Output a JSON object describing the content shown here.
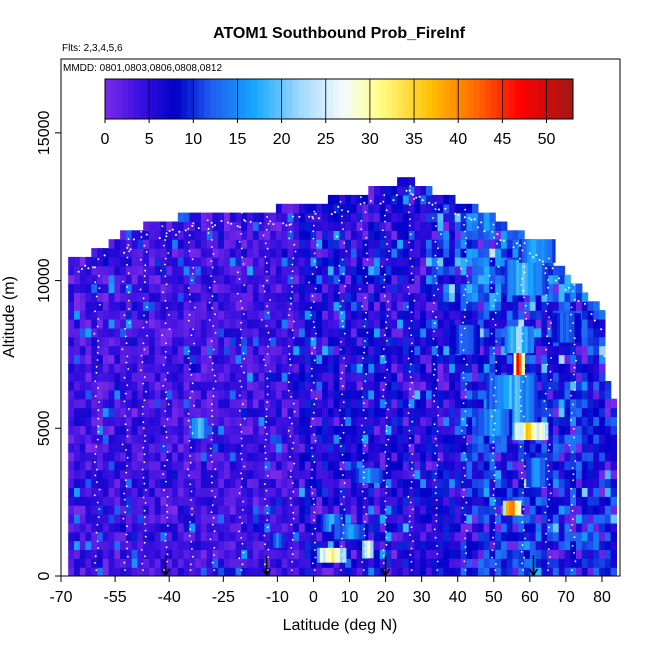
{
  "chart_data": {
    "type": "heatmap",
    "title": "ATOM1 Southbound Prob_FireInf",
    "subtitle_flights": "Flts: 2,3,4,5,6",
    "subtitle_dates": "MMDD: 0801,0803,0806,0808,0812",
    "xlabel": "Latitude (deg N)",
    "ylabel": "Altitude (m)",
    "xlim": [
      -70,
      85
    ],
    "ylim": [
      0,
      17500
    ],
    "x_ticks": [
      -70,
      -55,
      -40,
      -25,
      -10,
      0,
      10,
      20,
      30,
      40,
      50,
      60,
      70,
      80
    ],
    "x_tick_labels": [
      "-70",
      "-55",
      "-40",
      "-25",
      "-10",
      "0",
      "10",
      "20",
      "30",
      "40",
      "50",
      "60",
      "70",
      "80"
    ],
    "y_ticks": [
      0,
      5000,
      10000,
      15000
    ],
    "y_tick_labels": [
      "0",
      "5000",
      "10000",
      "15000"
    ],
    "colorbar": {
      "min": 0,
      "max": 53,
      "ticks": [
        0,
        5,
        10,
        15,
        20,
        25,
        30,
        35,
        40,
        45,
        50
      ],
      "tick_labels": [
        "0",
        "5",
        "10",
        "15",
        "20",
        "25",
        "30",
        "35",
        "40",
        "45",
        "50"
      ],
      "stops": [
        {
          "v": 0,
          "c": "#7b2be8"
        },
        {
          "v": 4,
          "c": "#3a10e0"
        },
        {
          "v": 8,
          "c": "#0000c8"
        },
        {
          "v": 12,
          "c": "#1f5cf0"
        },
        {
          "v": 17,
          "c": "#17a8ff"
        },
        {
          "v": 22,
          "c": "#9fd8ff"
        },
        {
          "v": 27,
          "c": "#f4fbff"
        },
        {
          "v": 31,
          "c": "#ffff8a"
        },
        {
          "v": 37,
          "c": "#ffbe00"
        },
        {
          "v": 42,
          "c": "#ff6a00"
        },
        {
          "v": 47,
          "c": "#ff0000"
        },
        {
          "v": 53,
          "c": "#a01818"
        }
      ]
    },
    "altitude_envelope": [
      [
        -68,
        10500
      ],
      [
        -62,
        10800
      ],
      [
        -56,
        11200
      ],
      [
        -50,
        11600
      ],
      [
        -44,
        11900
      ],
      [
        -38,
        12000
      ],
      [
        -30,
        12200
      ],
      [
        -20,
        12300
      ],
      [
        -10,
        12300
      ],
      [
        0,
        12500
      ],
      [
        10,
        12800
      ],
      [
        20,
        13000
      ],
      [
        25,
        13400
      ],
      [
        30,
        13000
      ],
      [
        40,
        12600
      ],
      [
        50,
        12000
      ],
      [
        58,
        11400
      ],
      [
        65,
        10800
      ],
      [
        70,
        10100
      ],
      [
        75,
        9500
      ],
      [
        80,
        8800
      ],
      [
        82,
        6000
      ]
    ],
    "hotspots": [
      {
        "lat": 5,
        "alt": 700,
        "value": 34,
        "w": 8,
        "h": 500
      },
      {
        "lat": 15,
        "alt": 900,
        "value": 30,
        "w": 3,
        "h": 600
      },
      {
        "lat": 57,
        "alt": 7200,
        "value": 46,
        "w": 3,
        "h": 800
      },
      {
        "lat": 60,
        "alt": 4900,
        "value": 36,
        "w": 10,
        "h": 600
      },
      {
        "lat": 55,
        "alt": 2300,
        "value": 44,
        "w": 5,
        "h": 500
      },
      {
        "lat": 57,
        "alt": 8000,
        "value": 22,
        "w": 8,
        "h": 900
      },
      {
        "lat": 59,
        "alt": 10100,
        "value": 20,
        "w": 12,
        "h": 1200
      },
      {
        "lat": 62,
        "alt": 11000,
        "value": 18,
        "w": 10,
        "h": 800
      },
      {
        "lat": 55,
        "alt": 6000,
        "value": 19,
        "w": 14,
        "h": 1600
      },
      {
        "lat": 50,
        "alt": 5200,
        "value": 17,
        "w": 10,
        "h": 900
      },
      {
        "lat": 62,
        "alt": 3500,
        "value": 16,
        "w": 6,
        "h": 1000
      },
      {
        "lat": -32,
        "alt": 5000,
        "value": 20,
        "w": 5,
        "h": 700
      },
      {
        "lat": 5,
        "alt": 1800,
        "value": 18,
        "w": 6,
        "h": 600
      },
      {
        "lat": 15,
        "alt": 3400,
        "value": 17,
        "w": 8,
        "h": 500
      },
      {
        "lat": 10,
        "alt": 1500,
        "value": 16,
        "w": 10,
        "h": 500
      },
      {
        "lat": -10,
        "alt": 1200,
        "value": 15,
        "w": 4,
        "h": 500
      },
      {
        "lat": 42,
        "alt": 8000,
        "value": 14,
        "w": 8,
        "h": 1000
      },
      {
        "lat": 70,
        "alt": 8400,
        "value": 14,
        "w": 8,
        "h": 1000
      }
    ],
    "descent_arrows_lat": [
      -41,
      -13,
      20,
      61
    ]
  }
}
